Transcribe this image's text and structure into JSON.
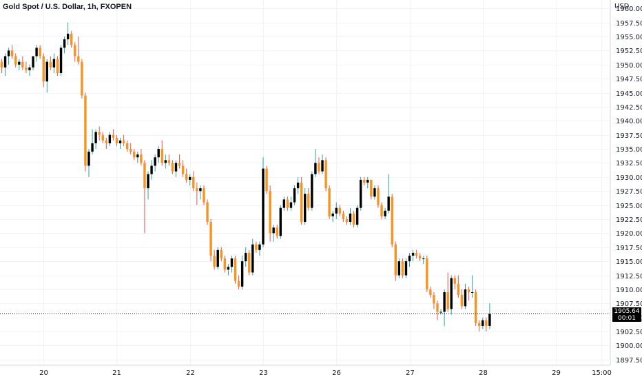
{
  "header": {
    "title": "Gold Spot / U.S. Dollar, 1h, FXOPEN"
  },
  "axis": {
    "currency": "USD"
  },
  "price_tag": {
    "price": "1905.64",
    "countdown": "00:01"
  },
  "colors": {
    "up": "#000000",
    "down": "#f7931e",
    "wick_up": "#26a69a",
    "wick_down": "#ef5350",
    "grid": "#f0f3fa",
    "axis_text": "#131722"
  },
  "chart_data": {
    "type": "candlestick",
    "title": "Gold Spot / U.S. Dollar, 1h, FXOPEN",
    "xlabel": "",
    "ylabel": "USD",
    "ylim": [
      1896.5,
      1961.5
    ],
    "grid": true,
    "y_ticks": [
      "1960.00",
      "1957.50",
      "1955.00",
      "1952.50",
      "1950.00",
      "1947.50",
      "1945.00",
      "1942.50",
      "1940.00",
      "1937.50",
      "1935.00",
      "1932.50",
      "1930.00",
      "1927.50",
      "1925.00",
      "1922.50",
      "1920.00",
      "1917.50",
      "1915.00",
      "1912.50",
      "1910.00",
      "1907.50",
      "1905.00",
      "1902.50",
      "1900.00",
      "1897.50"
    ],
    "x_ticks": [
      {
        "label": "20",
        "index": 12
      },
      {
        "label": "21",
        "index": 33
      },
      {
        "label": "22",
        "index": 54
      },
      {
        "label": "23",
        "index": 75
      },
      {
        "label": "26",
        "index": 96
      },
      {
        "label": "27",
        "index": 117
      },
      {
        "label": "28",
        "index": 138
      },
      {
        "label": "29",
        "index": 159
      },
      {
        "label": "15:00",
        "index": 172
      }
    ],
    "last_price": 1905.64,
    "candles": [
      [
        1950.5,
        1951.0,
        1948.5,
        1949.5
      ],
      [
        1949.5,
        1952.0,
        1948.0,
        1951.5
      ],
      [
        1951.5,
        1953.0,
        1950.0,
        1952.5
      ],
      [
        1952.5,
        1953.5,
        1951.0,
        1951.5
      ],
      [
        1951.5,
        1952.0,
        1949.5,
        1950.0
      ],
      [
        1950.0,
        1951.0,
        1949.0,
        1950.5
      ],
      [
        1950.5,
        1951.5,
        1949.0,
        1949.5
      ],
      [
        1949.5,
        1950.5,
        1948.5,
        1949.0
      ],
      [
        1949.0,
        1950.0,
        1948.0,
        1949.5
      ],
      [
        1949.5,
        1951.5,
        1949.0,
        1951.5
      ],
      [
        1951.5,
        1953.5,
        1950.5,
        1953.0
      ],
      [
        1953.0,
        1953.5,
        1951.0,
        1951.5
      ],
      [
        1951.5,
        1952.0,
        1946.0,
        1947.0
      ],
      [
        1947.0,
        1951.0,
        1945.0,
        1950.5
      ],
      [
        1950.5,
        1951.5,
        1949.0,
        1949.5
      ],
      [
        1949.5,
        1952.0,
        1948.5,
        1951.0
      ],
      [
        1951.0,
        1951.5,
        1948.0,
        1948.5
      ],
      [
        1948.5,
        1953.5,
        1948.0,
        1953.0
      ],
      [
        1953.0,
        1955.0,
        1952.0,
        1954.5
      ],
      [
        1954.5,
        1957.5,
        1953.5,
        1955.5
      ],
      [
        1955.5,
        1956.0,
        1953.0,
        1953.5
      ],
      [
        1953.5,
        1954.0,
        1950.5,
        1951.5
      ],
      [
        1951.5,
        1955.0,
        1950.0,
        1950.5
      ],
      [
        1950.5,
        1951.0,
        1944.0,
        1944.5
      ],
      [
        1944.5,
        1945.0,
        1931.0,
        1932.0
      ],
      [
        1932.0,
        1935.0,
        1930.0,
        1934.5
      ],
      [
        1934.5,
        1938.5,
        1934.0,
        1936.0
      ],
      [
        1936.0,
        1938.5,
        1935.0,
        1938.0
      ],
      [
        1938.0,
        1939.0,
        1936.5,
        1937.5
      ],
      [
        1937.5,
        1938.0,
        1936.0,
        1936.5
      ],
      [
        1936.5,
        1937.0,
        1935.0,
        1936.0
      ],
      [
        1936.0,
        1938.0,
        1935.5,
        1937.5
      ],
      [
        1937.5,
        1938.5,
        1936.5,
        1937.0
      ],
      [
        1937.0,
        1937.5,
        1935.5,
        1936.0
      ],
      [
        1936.0,
        1937.0,
        1935.0,
        1936.5
      ],
      [
        1936.5,
        1937.5,
        1935.5,
        1936.0
      ],
      [
        1936.0,
        1936.5,
        1934.5,
        1935.0
      ],
      [
        1935.0,
        1936.0,
        1934.0,
        1934.5
      ],
      [
        1934.5,
        1935.0,
        1933.0,
        1933.5
      ],
      [
        1933.5,
        1934.5,
        1932.5,
        1934.0
      ],
      [
        1934.0,
        1935.0,
        1932.0,
        1932.5
      ],
      [
        1932.5,
        1933.0,
        1920.0,
        1928.0
      ],
      [
        1928.0,
        1931.0,
        1926.0,
        1930.5
      ],
      [
        1930.5,
        1933.0,
        1929.5,
        1932.0
      ],
      [
        1932.0,
        1934.0,
        1931.0,
        1933.5
      ],
      [
        1933.5,
        1935.5,
        1932.5,
        1935.0
      ],
      [
        1935.0,
        1936.5,
        1932.0,
        1932.5
      ],
      [
        1932.5,
        1934.0,
        1931.5,
        1933.0
      ],
      [
        1933.0,
        1934.0,
        1932.0,
        1932.5
      ],
      [
        1932.5,
        1933.0,
        1930.5,
        1931.0
      ],
      [
        1931.0,
        1933.0,
        1930.0,
        1932.5
      ],
      [
        1932.5,
        1934.0,
        1931.5,
        1932.0
      ],
      [
        1932.0,
        1933.0,
        1930.0,
        1930.5
      ],
      [
        1930.5,
        1931.5,
        1929.0,
        1929.5
      ],
      [
        1929.5,
        1930.5,
        1928.5,
        1930.0
      ],
      [
        1930.0,
        1931.0,
        1927.5,
        1928.0
      ],
      [
        1928.0,
        1929.0,
        1925.0,
        1927.5
      ],
      [
        1927.5,
        1928.5,
        1926.0,
        1928.0
      ],
      [
        1928.0,
        1928.5,
        1925.0,
        1925.5
      ],
      [
        1925.5,
        1926.0,
        1921.5,
        1922.0
      ],
      [
        1922.0,
        1922.5,
        1915.0,
        1916.0
      ],
      [
        1916.0,
        1917.0,
        1913.5,
        1914.0
      ],
      [
        1914.0,
        1917.5,
        1913.5,
        1917.0
      ],
      [
        1917.0,
        1917.5,
        1915.0,
        1915.5
      ],
      [
        1915.5,
        1916.0,
        1913.0,
        1913.5
      ],
      [
        1913.5,
        1914.5,
        1912.5,
        1914.0
      ],
      [
        1914.0,
        1916.0,
        1913.0,
        1915.5
      ],
      [
        1915.5,
        1916.0,
        1911.0,
        1911.5
      ],
      [
        1911.5,
        1912.5,
        1910.0,
        1910.5
      ],
      [
        1910.5,
        1916.0,
        1910.0,
        1915.0
      ],
      [
        1915.0,
        1917.5,
        1914.0,
        1916.5
      ],
      [
        1916.5,
        1917.0,
        1912.5,
        1913.0
      ],
      [
        1913.0,
        1919.0,
        1912.5,
        1918.0
      ],
      [
        1918.0,
        1918.5,
        1916.5,
        1917.0
      ],
      [
        1917.0,
        1918.5,
        1916.0,
        1918.0
      ],
      [
        1918.0,
        1933.5,
        1917.5,
        1931.5
      ],
      [
        1931.5,
        1932.0,
        1927.0,
        1927.5
      ],
      [
        1927.5,
        1928.5,
        1918.5,
        1920.0
      ],
      [
        1920.0,
        1921.5,
        1918.5,
        1921.0
      ],
      [
        1921.0,
        1921.5,
        1919.0,
        1919.5
      ],
      [
        1919.5,
        1925.0,
        1919.0,
        1924.5
      ],
      [
        1924.5,
        1926.5,
        1924.0,
        1926.0
      ],
      [
        1926.0,
        1926.5,
        1924.0,
        1924.5
      ],
      [
        1924.5,
        1926.5,
        1924.0,
        1925.5
      ],
      [
        1925.5,
        1928.5,
        1925.0,
        1928.0
      ],
      [
        1928.0,
        1930.0,
        1927.0,
        1929.0
      ],
      [
        1929.0,
        1930.0,
        1921.5,
        1922.0
      ],
      [
        1922.0,
        1928.0,
        1921.5,
        1927.0
      ],
      [
        1927.0,
        1928.0,
        1924.0,
        1924.5
      ],
      [
        1924.5,
        1931.0,
        1924.0,
        1930.5
      ],
      [
        1930.5,
        1935.0,
        1930.0,
        1932.5
      ],
      [
        1932.5,
        1933.5,
        1930.5,
        1931.0
      ],
      [
        1931.0,
        1934.0,
        1930.5,
        1933.0
      ],
      [
        1933.0,
        1933.5,
        1927.5,
        1928.0
      ],
      [
        1928.0,
        1928.5,
        1922.5,
        1923.0
      ],
      [
        1923.0,
        1924.0,
        1922.0,
        1923.5
      ],
      [
        1923.5,
        1925.5,
        1922.5,
        1924.5
      ],
      [
        1924.5,
        1925.0,
        1923.0,
        1923.5
      ],
      [
        1923.5,
        1924.0,
        1922.0,
        1922.5
      ],
      [
        1922.5,
        1923.0,
        1921.5,
        1922.0
      ],
      [
        1922.0,
        1924.5,
        1921.5,
        1923.5
      ],
      [
        1923.5,
        1924.0,
        1921.0,
        1921.5
      ],
      [
        1921.5,
        1925.0,
        1921.0,
        1924.5
      ],
      [
        1924.5,
        1930.0,
        1924.0,
        1929.5
      ],
      [
        1929.5,
        1930.0,
        1928.5,
        1929.0
      ],
      [
        1929.0,
        1930.0,
        1928.0,
        1929.5
      ],
      [
        1929.5,
        1929.5,
        1926.0,
        1926.5
      ],
      [
        1926.5,
        1928.5,
        1926.0,
        1928.0
      ],
      [
        1928.0,
        1928.5,
        1924.5,
        1925.0
      ],
      [
        1925.0,
        1925.5,
        1922.5,
        1923.0
      ],
      [
        1923.0,
        1924.5,
        1922.5,
        1924.0
      ],
      [
        1924.0,
        1930.5,
        1923.5,
        1926.5
      ],
      [
        1926.5,
        1927.0,
        1917.5,
        1918.0
      ],
      [
        1918.0,
        1918.5,
        1911.5,
        1912.5
      ],
      [
        1912.5,
        1915.5,
        1912.0,
        1915.0
      ],
      [
        1915.0,
        1915.5,
        1912.0,
        1912.5
      ],
      [
        1912.5,
        1915.5,
        1912.0,
        1915.0
      ],
      [
        1915.0,
        1916.5,
        1914.0,
        1916.0
      ],
      [
        1916.0,
        1917.0,
        1915.0,
        1916.5
      ],
      [
        1916.5,
        1917.0,
        1915.5,
        1916.0
      ],
      [
        1916.0,
        1916.5,
        1915.0,
        1915.5
      ],
      [
        1915.5,
        1916.0,
        1914.5,
        1915.5
      ],
      [
        1915.5,
        1916.0,
        1909.5,
        1910.0
      ],
      [
        1910.0,
        1910.5,
        1908.5,
        1909.0
      ],
      [
        1909.0,
        1909.5,
        1906.5,
        1907.5
      ],
      [
        1907.5,
        1908.0,
        1904.5,
        1906.0
      ],
      [
        1906.0,
        1906.5,
        1905.5,
        1906.0
      ],
      [
        1906.0,
        1910.0,
        1903.5,
        1909.5
      ],
      [
        1909.5,
        1913.0,
        1906.0,
        1906.5
      ],
      [
        1906.5,
        1912.5,
        1905.5,
        1912.0
      ],
      [
        1912.0,
        1912.5,
        1910.0,
        1911.0
      ],
      [
        1911.0,
        1912.5,
        1908.5,
        1909.0
      ],
      [
        1909.0,
        1910.0,
        1906.5,
        1907.0
      ],
      [
        1907.0,
        1911.0,
        1906.5,
        1910.0
      ],
      [
        1910.0,
        1910.5,
        1908.0,
        1909.5
      ],
      [
        1909.5,
        1912.5,
        1908.5,
        1909.5
      ],
      [
        1909.5,
        1910.0,
        1903.5,
        1904.0
      ],
      [
        1904.0,
        1904.5,
        1902.5,
        1903.5
      ],
      [
        1903.5,
        1905.0,
        1903.0,
        1904.5
      ],
      [
        1904.5,
        1905.0,
        1902.5,
        1903.5
      ],
      [
        1903.5,
        1907.5,
        1903.0,
        1905.64
      ]
    ]
  }
}
